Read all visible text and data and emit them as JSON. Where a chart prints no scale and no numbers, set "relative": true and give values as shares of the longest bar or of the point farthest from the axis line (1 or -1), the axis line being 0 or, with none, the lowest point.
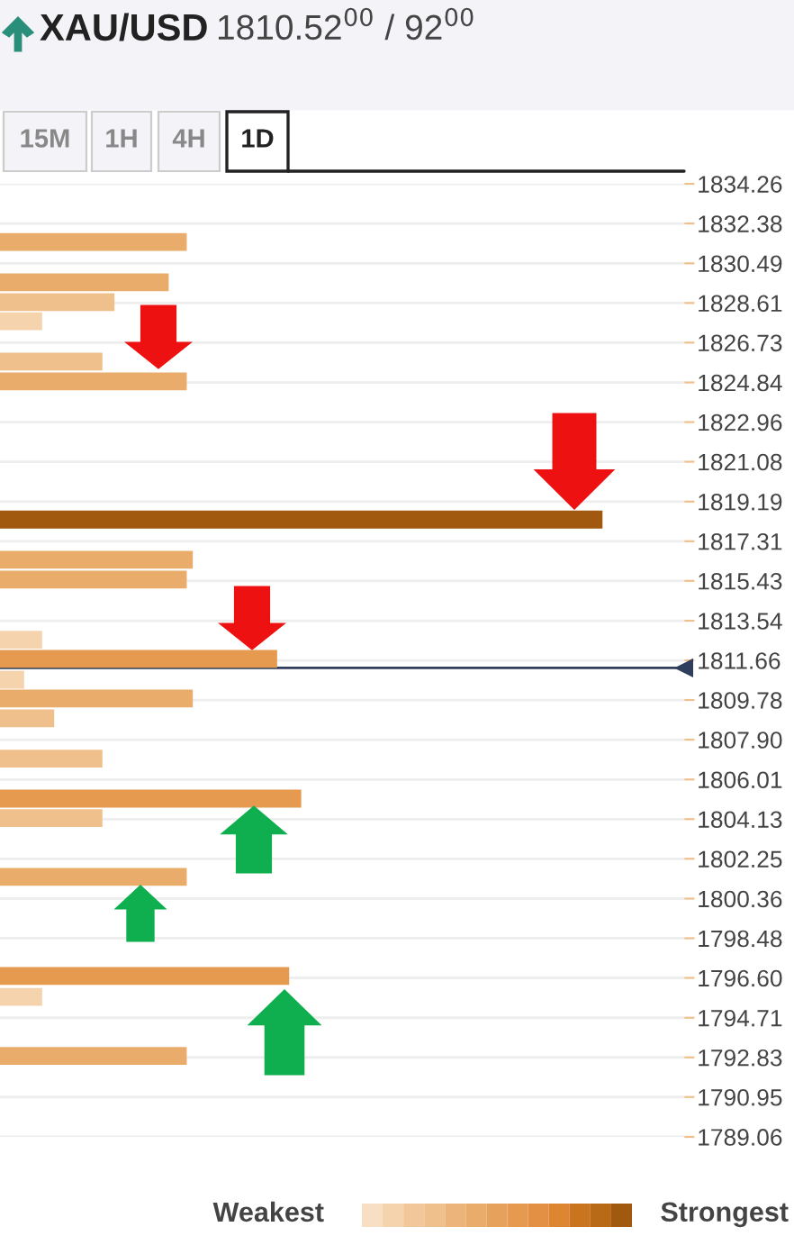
{
  "chart_data": {
    "type": "bar",
    "orientation": "horizontal",
    "relative": true,
    "title": "XAU/USD",
    "subtitle": "1810.52$^{00}$ / 92$^{00}$",
    "x": [
      1831.5,
      1829.59,
      1828.65,
      1827.74,
      1825.83,
      1824.89,
      1818.34,
      1816.43,
      1815.49,
      1812.64,
      1811.73,
      1810.74,
      1809.85,
      1808.91,
      1807.0,
      1805.1,
      1804.18,
      1801.39,
      1796.69,
      1795.7,
      1792.9
    ],
    "values": [
      0.31,
      0.28,
      0.19,
      0.07,
      0.17,
      0.31,
      1,
      0.32,
      0.31,
      0.07,
      0.46,
      0.04,
      0.32,
      0.09,
      0.17,
      0.5,
      0.17,
      0.31,
      0.48,
      0.07,
      0.31
    ],
    "colors": [
      "#e9ac6b",
      "#e9ac6b",
      "#f0c08c",
      "#f5d3ad",
      "#f0c08c",
      "#e9ac6b",
      "#a0590f",
      "#e9ac6b",
      "#e9ac6b",
      "#f5d3ad",
      "#e59a50",
      "#f5d3ad",
      "#e9ac6b",
      "#f0c08c",
      "#f0c08c",
      "#e59a50",
      "#f0c08c",
      "#e9ac6b",
      "#e59a50",
      "#f5d3ad",
      "#e9ac6b"
    ],
    "ylim": [
      1789.06,
      1834.26
    ],
    "yticks": [
      1834.26,
      1832.38,
      1830.49,
      1828.61,
      1826.73,
      1824.84,
      1822.96,
      1821.08,
      1819.19,
      1817.31,
      1815.43,
      1813.54,
      1811.66,
      1809.78,
      {
        "value": 1807.9,
        "label": "1807.90"
      },
      1806.01,
      1804.13,
      1802.25,
      1800.36,
      1798.48,
      {
        "value": 1796.6,
        "label": "1796.60"
      },
      1794.71,
      1792.83,
      1790.95,
      1789.06
    ],
    "tick_labels": "y",
    "grid": "y",
    "ref_lines": [
      {
        "axis": "y",
        "value": 1811.3,
        "color": "#2f3e5c"
      }
    ],
    "annotations": [
      "15M",
      "1H",
      "4H",
      "1D",
      "Weakest",
      "Strongest"
    ]
  }
}
